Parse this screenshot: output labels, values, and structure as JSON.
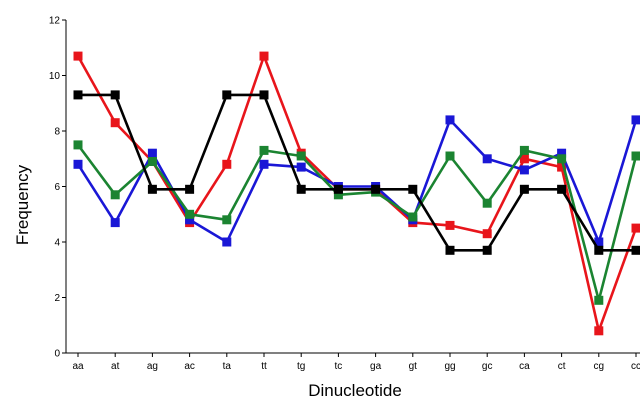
{
  "chart_data": {
    "type": "line",
    "title": "",
    "xlabel": "Dinucleotide",
    "ylabel": "Frequency",
    "ylim": [
      0,
      12
    ],
    "yticks": [
      "0",
      "2",
      "4",
      "6",
      "8",
      "10",
      "12"
    ],
    "grid": false,
    "legend": "none",
    "categories": [
      "aa",
      "at",
      "ag",
      "ac",
      "ta",
      "tt",
      "tg",
      "tc",
      "ga",
      "gt",
      "gg",
      "gc",
      "ca",
      "ct",
      "cg",
      "cc"
    ],
    "series": [
      {
        "color": "#e8151b",
        "marker": "square",
        "values": [
          10.7,
          8.3,
          6.9,
          4.7,
          6.8,
          10.7,
          7.2,
          5.9,
          5.9,
          4.7,
          4.6,
          4.3,
          7.0,
          6.7,
          0.8,
          4.5
        ]
      },
      {
        "color": "#1a17d6",
        "marker": "square",
        "values": [
          6.8,
          4.7,
          7.2,
          4.8,
          4.0,
          6.8,
          6.7,
          6.0,
          6.0,
          4.8,
          8.4,
          7.0,
          6.6,
          7.2,
          4.0,
          8.4
        ]
      },
      {
        "color": "#1b8431",
        "marker": "square",
        "values": [
          7.5,
          5.7,
          6.9,
          5.0,
          4.8,
          7.3,
          7.1,
          5.7,
          5.8,
          4.9,
          7.1,
          5.4,
          7.3,
          7.0,
          1.9,
          7.1
        ]
      },
      {
        "color": "#000000",
        "marker": "square",
        "values": [
          9.3,
          9.3,
          5.9,
          5.9,
          9.3,
          9.3,
          5.9,
          5.9,
          5.9,
          5.9,
          3.7,
          3.7,
          5.9,
          5.9,
          3.7,
          3.7
        ]
      }
    ]
  }
}
